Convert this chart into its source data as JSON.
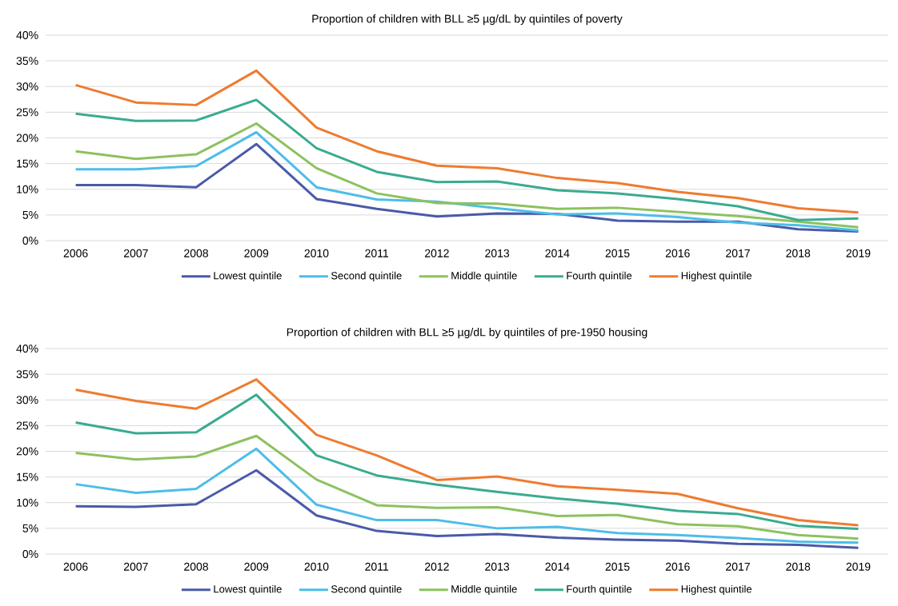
{
  "chart_data": [
    {
      "type": "line",
      "title": "Proportion of children with BLL ≥5 µg/dL by quintiles of poverty",
      "categories": [
        "2006",
        "2007",
        "2008",
        "2009",
        "2010",
        "2011",
        "2012",
        "2013",
        "2014",
        "2015",
        "2016",
        "2017",
        "2018",
        "2019"
      ],
      "ylim": [
        0,
        40
      ],
      "yticks": [
        {
          "value": 0,
          "label": "0%"
        },
        {
          "value": 5,
          "label": "5%"
        },
        {
          "value": 10,
          "label": "10%"
        },
        {
          "value": 15,
          "label": "15%"
        },
        {
          "value": 20,
          "label": "20%"
        },
        {
          "value": 25,
          "label": "25%"
        },
        {
          "value": 30,
          "label": "30%"
        },
        {
          "value": 35,
          "label": "35%"
        },
        {
          "value": 40,
          "label": "40%"
        }
      ],
      "grid": "y",
      "legend": "bottom",
      "marker": "none",
      "line_style": "solid",
      "series": [
        {
          "name": "Lowest quintile",
          "color": "#4a5aa8",
          "values": [
            10.8,
            10.8,
            10.4,
            18.8,
            8.1,
            6.2,
            4.7,
            5.3,
            5.2,
            3.9,
            3.7,
            3.7,
            2.2,
            1.8
          ]
        },
        {
          "name": "Second quintile",
          "color": "#4dbde9",
          "values": [
            13.9,
            13.9,
            14.5,
            21.1,
            10.4,
            8.0,
            7.6,
            6.3,
            5.1,
            5.3,
            4.6,
            3.5,
            3.0,
            2.0
          ]
        },
        {
          "name": "Middle quintile",
          "color": "#8dc15f",
          "values": [
            17.4,
            15.9,
            16.8,
            22.8,
            14.1,
            9.2,
            7.3,
            7.2,
            6.2,
            6.4,
            5.6,
            4.8,
            3.7,
            2.6
          ]
        },
        {
          "name": "Fourth quintile",
          "color": "#3aab8f",
          "values": [
            24.7,
            23.3,
            23.4,
            27.4,
            18.0,
            13.4,
            11.4,
            11.5,
            9.8,
            9.2,
            8.1,
            6.7,
            4.0,
            4.3
          ]
        },
        {
          "name": "Highest quintile",
          "color": "#ee7b30",
          "values": [
            30.3,
            26.9,
            26.4,
            33.1,
            22.0,
            17.4,
            14.6,
            14.1,
            12.2,
            11.2,
            9.5,
            8.3,
            6.3,
            5.5
          ]
        }
      ]
    },
    {
      "type": "line",
      "title": "Proportion of children with BLL ≥5 µg/dL by quintiles of pre-1950 housing",
      "categories": [
        "2006",
        "2007",
        "2008",
        "2009",
        "2010",
        "2011",
        "2012",
        "2013",
        "2014",
        "2015",
        "2016",
        "2017",
        "2018",
        "2019"
      ],
      "ylim": [
        0,
        40
      ],
      "yticks": [
        {
          "value": 0,
          "label": "0%"
        },
        {
          "value": 5,
          "label": "5%"
        },
        {
          "value": 10,
          "label": "10%"
        },
        {
          "value": 15,
          "label": "15%"
        },
        {
          "value": 20,
          "label": "20%"
        },
        {
          "value": 25,
          "label": "25%"
        },
        {
          "value": 30,
          "label": "30%"
        },
        {
          "value": 35,
          "label": "35%"
        },
        {
          "value": 40,
          "label": "40%"
        }
      ],
      "grid": "y",
      "legend": "bottom",
      "marker": "none",
      "line_style": "solid",
      "series": [
        {
          "name": "Lowest quintile",
          "color": "#4a5aa8",
          "values": [
            9.3,
            9.2,
            9.7,
            16.3,
            7.5,
            4.5,
            3.5,
            3.9,
            3.2,
            2.8,
            2.6,
            2.0,
            1.8,
            1.2
          ]
        },
        {
          "name": "Second quintile",
          "color": "#4dbde9",
          "values": [
            13.6,
            11.9,
            12.7,
            20.5,
            9.6,
            6.6,
            6.6,
            5.0,
            5.3,
            4.1,
            3.7,
            3.1,
            2.4,
            2.2
          ]
        },
        {
          "name": "Middle quintile",
          "color": "#8dc15f",
          "values": [
            19.7,
            18.4,
            19.0,
            23.0,
            14.5,
            9.5,
            9.0,
            9.1,
            7.4,
            7.6,
            5.8,
            5.4,
            3.7,
            3.0
          ]
        },
        {
          "name": "Fourth quintile",
          "color": "#3aab8f",
          "values": [
            25.6,
            23.5,
            23.7,
            31.0,
            19.2,
            15.3,
            13.5,
            12.1,
            10.8,
            9.8,
            8.4,
            7.8,
            5.5,
            4.9
          ]
        },
        {
          "name": "Highest quintile",
          "color": "#ee7b30",
          "values": [
            32.0,
            29.8,
            28.3,
            34.0,
            23.2,
            19.2,
            14.4,
            15.1,
            13.2,
            12.5,
            11.7,
            8.9,
            6.6,
            5.6
          ]
        }
      ]
    }
  ]
}
